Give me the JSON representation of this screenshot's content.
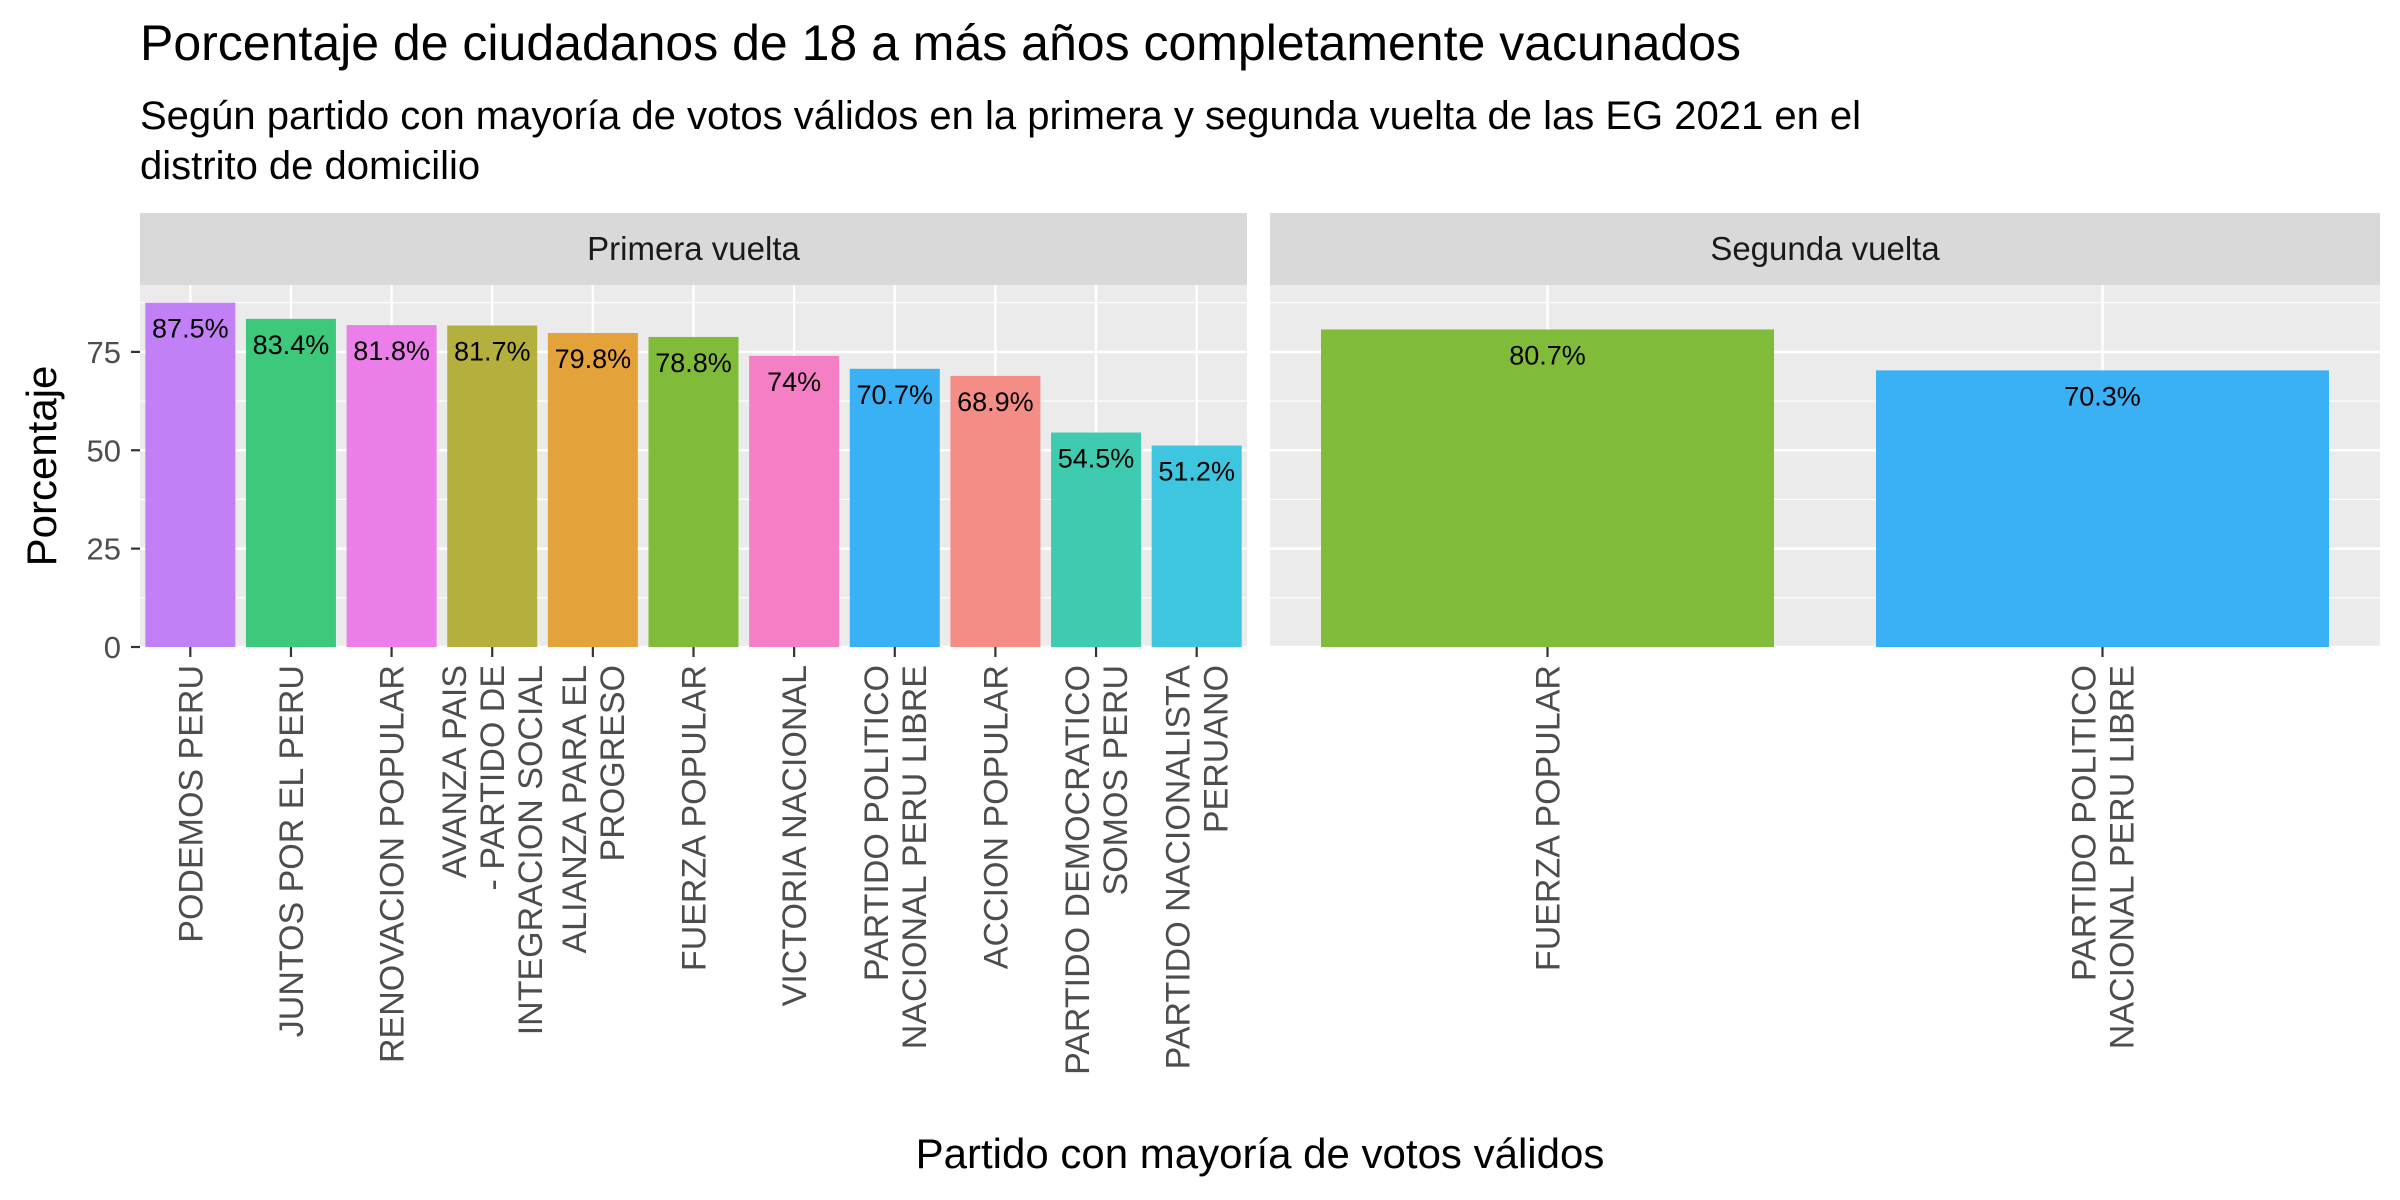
{
  "chart_data": {
    "type": "bar",
    "title": "Porcentaje de ciudadanos de 18 a más años completamente vacunados",
    "subtitle_lines": [
      "Según partido con mayoría de votos válidos en la primera y segunda vuelta de las EG 2021 en el",
      "distrito de domicilio"
    ],
    "xlabel": "Partido con mayoría de votos válidos",
    "ylabel": "Porcentaje",
    "ylim": [
      0,
      92
    ],
    "yticks": [
      0,
      25,
      50,
      75
    ],
    "grid": true,
    "legend": "none",
    "panels": [
      {
        "name": "Primera vuelta",
        "categories": [
          [
            "PODEMOS PERU"
          ],
          [
            "JUNTOS POR EL PERU"
          ],
          [
            "RENOVACION POPULAR"
          ],
          [
            "AVANZA PAIS",
            "- PARTIDO DE",
            "INTEGRACION SOCIAL"
          ],
          [
            "ALIANZA PARA EL",
            "PROGRESO"
          ],
          [
            "FUERZA POPULAR"
          ],
          [
            "VICTORIA NACIONAL"
          ],
          [
            "PARTIDO POLITICO",
            "NACIONAL PERU LIBRE"
          ],
          [
            "ACCION POPULAR"
          ],
          [
            "PARTIDO DEMOCRATICO",
            "SOMOS PERU"
          ],
          [
            "PARTIDO NACIONALISTA",
            "PERUANO"
          ]
        ],
        "values": [
          87.5,
          83.4,
          81.8,
          81.7,
          79.8,
          78.8,
          74,
          70.7,
          68.9,
          54.5,
          51.2
        ],
        "labels": [
          "87.5%",
          "83.4%",
          "81.8%",
          "81.7%",
          "79.8%",
          "78.8%",
          "74%",
          "70.7%",
          "68.9%",
          "54.5%",
          "51.2%"
        ],
        "colors": [
          "#c280f7",
          "#3ec87c",
          "#ec7ee9",
          "#b5b03e",
          "#e3a23a",
          "#80bb3a",
          "#f47fc4",
          "#3ab0f5",
          "#f38d86",
          "#3ecbb0",
          "#3ec5e0"
        ]
      },
      {
        "name": "Segunda vuelta",
        "categories": [
          [
            "FUERZA POPULAR"
          ],
          [
            "PARTIDO POLITICO",
            "NACIONAL PERU LIBRE"
          ]
        ],
        "values": [
          80.7,
          70.3
        ],
        "labels": [
          "80.7%",
          "70.3%"
        ],
        "colors": [
          "#80bb3a",
          "#3ab0f5"
        ]
      }
    ]
  }
}
